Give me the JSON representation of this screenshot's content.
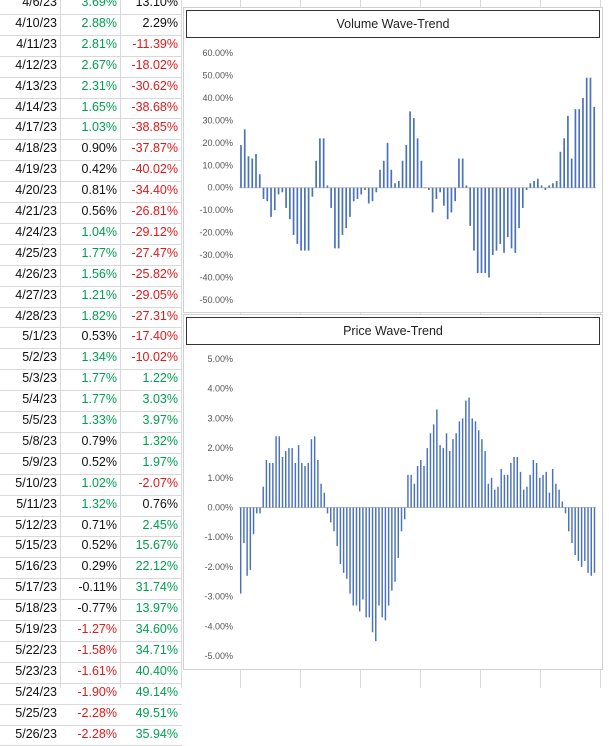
{
  "table": {
    "rows": [
      {
        "date": "4/6/23",
        "a": "3.69%",
        "b": "13.10%",
        "ac": "pos",
        "bc": "neu"
      },
      {
        "date": "4/10/23",
        "a": "2.88%",
        "b": "2.29%",
        "ac": "pos",
        "bc": "neu"
      },
      {
        "date": "4/11/23",
        "a": "2.81%",
        "b": "-11.39%",
        "ac": "pos",
        "bc": "neg"
      },
      {
        "date": "4/12/23",
        "a": "2.67%",
        "b": "-18.02%",
        "ac": "pos",
        "bc": "neg"
      },
      {
        "date": "4/13/23",
        "a": "2.31%",
        "b": "-30.62%",
        "ac": "pos",
        "bc": "neg"
      },
      {
        "date": "4/14/23",
        "a": "1.65%",
        "b": "-38.68%",
        "ac": "pos",
        "bc": "neg"
      },
      {
        "date": "4/17/23",
        "a": "1.03%",
        "b": "-38.85%",
        "ac": "pos",
        "bc": "neg"
      },
      {
        "date": "4/18/23",
        "a": "0.90%",
        "b": "-37.87%",
        "ac": "neu",
        "bc": "neg"
      },
      {
        "date": "4/19/23",
        "a": "0.42%",
        "b": "-40.02%",
        "ac": "neu",
        "bc": "neg"
      },
      {
        "date": "4/20/23",
        "a": "0.81%",
        "b": "-34.40%",
        "ac": "neu",
        "bc": "neg"
      },
      {
        "date": "4/21/23",
        "a": "0.56%",
        "b": "-26.81%",
        "ac": "neu",
        "bc": "neg"
      },
      {
        "date": "4/24/23",
        "a": "1.04%",
        "b": "-29.12%",
        "ac": "pos",
        "bc": "neg"
      },
      {
        "date": "4/25/23",
        "a": "1.77%",
        "b": "-27.47%",
        "ac": "pos",
        "bc": "neg"
      },
      {
        "date": "4/26/23",
        "a": "1.56%",
        "b": "-25.82%",
        "ac": "pos",
        "bc": "neg"
      },
      {
        "date": "4/27/23",
        "a": "1.21%",
        "b": "-29.05%",
        "ac": "pos",
        "bc": "neg"
      },
      {
        "date": "4/28/23",
        "a": "1.82%",
        "b": "-27.31%",
        "ac": "pos",
        "bc": "neg"
      },
      {
        "date": "5/1/23",
        "a": "0.53%",
        "b": "-17.40%",
        "ac": "neu",
        "bc": "neg"
      },
      {
        "date": "5/2/23",
        "a": "1.34%",
        "b": "-10.02%",
        "ac": "pos",
        "bc": "neg"
      },
      {
        "date": "5/3/23",
        "a": "1.77%",
        "b": "1.22%",
        "ac": "pos",
        "bc": "pos"
      },
      {
        "date": "5/4/23",
        "a": "1.77%",
        "b": "3.03%",
        "ac": "pos",
        "bc": "pos"
      },
      {
        "date": "5/5/23",
        "a": "1.33%",
        "b": "3.97%",
        "ac": "pos",
        "bc": "pos"
      },
      {
        "date": "5/8/23",
        "a": "0.79%",
        "b": "1.32%",
        "ac": "neu",
        "bc": "pos"
      },
      {
        "date": "5/9/23",
        "a": "0.52%",
        "b": "1.97%",
        "ac": "neu",
        "bc": "pos"
      },
      {
        "date": "5/10/23",
        "a": "1.02%",
        "b": "-2.07%",
        "ac": "pos",
        "bc": "neg"
      },
      {
        "date": "5/11/23",
        "a": "1.32%",
        "b": "0.76%",
        "ac": "pos",
        "bc": "neu"
      },
      {
        "date": "5/12/23",
        "a": "0.71%",
        "b": "2.45%",
        "ac": "neu",
        "bc": "pos"
      },
      {
        "date": "5/15/23",
        "a": "0.52%",
        "b": "15.67%",
        "ac": "neu",
        "bc": "pos"
      },
      {
        "date": "5/16/23",
        "a": "0.29%",
        "b": "22.12%",
        "ac": "neu",
        "bc": "pos"
      },
      {
        "date": "5/17/23",
        "a": "-0.11%",
        "b": "31.74%",
        "ac": "neu",
        "bc": "pos"
      },
      {
        "date": "5/18/23",
        "a": "-0.77%",
        "b": "13.97%",
        "ac": "neu",
        "bc": "pos"
      },
      {
        "date": "5/19/23",
        "a": "-1.27%",
        "b": "34.60%",
        "ac": "neg",
        "bc": "pos"
      },
      {
        "date": "5/22/23",
        "a": "-1.58%",
        "b": "34.71%",
        "ac": "neg",
        "bc": "pos"
      },
      {
        "date": "5/23/23",
        "a": "-1.61%",
        "b": "40.40%",
        "ac": "neg",
        "bc": "pos"
      },
      {
        "date": "5/24/23",
        "a": "-1.90%",
        "b": "49.14%",
        "ac": "neg",
        "bc": "pos"
      },
      {
        "date": "5/25/23",
        "a": "-2.28%",
        "b": "49.51%",
        "ac": "neg",
        "bc": "pos"
      },
      {
        "date": "5/26/23",
        "a": "-2.28%",
        "b": "35.94%",
        "ac": "neg",
        "bc": "pos"
      }
    ]
  },
  "colors": {
    "positive": "#00a050",
    "negative": "#e01a1a",
    "bar": "#4a72b8"
  },
  "chart_data": [
    {
      "type": "bar",
      "title": "Volume Wave-Trend",
      "ylim": [
        -50,
        60
      ],
      "yticks": [
        "60.00%",
        "50.00%",
        "40.00%",
        "30.00%",
        "20.00%",
        "10.00%",
        "0.00%",
        "-10.00%",
        "-20.00%",
        "-30.00%",
        "-40.00%",
        "-50.00%"
      ],
      "grid": false,
      "values": [
        19,
        26,
        14,
        13,
        15,
        6,
        -5,
        -6,
        -13,
        -10,
        -3,
        -2,
        -9,
        -14,
        -21,
        -25,
        -28,
        -28,
        -28,
        -4,
        12,
        22,
        22,
        1,
        -9,
        -27,
        -27,
        -21,
        -18,
        -13,
        -6,
        -5,
        -3,
        -1,
        -7,
        -6,
        -2,
        8,
        12,
        20,
        8,
        2,
        3,
        12,
        19,
        34,
        31,
        22,
        12,
        0,
        -1,
        -11,
        -5,
        -2,
        -8,
        -14,
        -11,
        -6,
        13,
        13,
        1,
        -17,
        -28,
        -38,
        -38,
        -38,
        -40,
        -30,
        -28,
        -25,
        -29,
        -22,
        -27,
        -29,
        -18,
        -9,
        -1,
        2,
        3,
        4,
        1,
        -1,
        1,
        2,
        3,
        16,
        22,
        32,
        13,
        35,
        35,
        40,
        49,
        49,
        36
      ]
    },
    {
      "type": "bar",
      "title": "Price Wave-Trend",
      "ylim": [
        -5,
        5
      ],
      "yticks": [
        "5.00%",
        "4.00%",
        "3.00%",
        "2.00%",
        "1.00%",
        "0.00%",
        "-1.00%",
        "-2.00%",
        "-3.00%",
        "-4.00%",
        "-5.00%"
      ],
      "grid": false,
      "values": [
        -2.9,
        -1.2,
        -2.3,
        -2.1,
        -0.9,
        -0.2,
        -0.2,
        0.7,
        1.6,
        1.5,
        1.5,
        2.4,
        2.4,
        1.7,
        1.9,
        2.0,
        2.0,
        1.5,
        2.1,
        1.5,
        1.4,
        1.5,
        2.3,
        2.4,
        1.6,
        0.8,
        0.5,
        -0.2,
        -0.5,
        -0.8,
        -1.3,
        -1.9,
        -2.2,
        -2.4,
        -2.9,
        -3.3,
        -3.3,
        -3.5,
        -3.1,
        -3.7,
        -3.7,
        -4.2,
        -4.5,
        -3.3,
        -3.7,
        -3.8,
        -3.3,
        -2.8,
        -2.5,
        -1.7,
        -0.8,
        -0.4,
        1.1,
        1.1,
        0.8,
        1.4,
        1.6,
        1.4,
        2.0,
        2.5,
        2.8,
        3.3,
        2.1,
        2.0,
        2.5,
        1.9,
        2.3,
        2.5,
        2.9,
        3.0,
        3.6,
        3.7,
        3.0,
        2.9,
        2.6,
        2.3,
        1.9,
        0.8,
        1.0,
        0.6,
        0.7,
        1.3,
        1.1,
        1.1,
        1.5,
        1.7,
        1.7,
        1.2,
        0.6,
        0.7,
        1.1,
        1.6,
        1.5,
        1.0,
        1.1,
        1.2,
        0.5,
        1.3,
        0.8,
        0.6,
        0.2,
        -0.2,
        -0.8,
        -1.2,
        -1.6,
        -1.8,
        -2.0,
        -1.8,
        -2.2,
        -2.3,
        -2.2
      ]
    }
  ]
}
